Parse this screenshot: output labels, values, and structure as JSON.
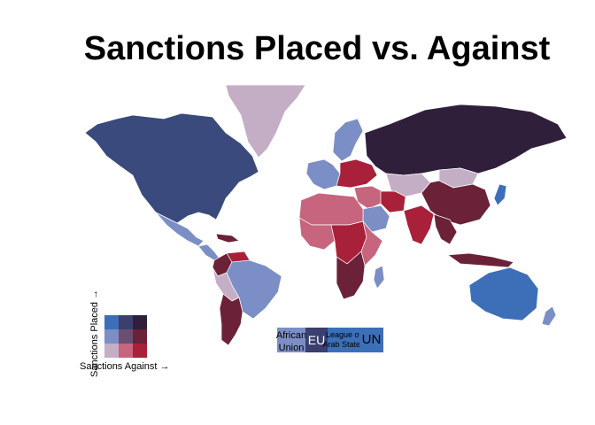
{
  "title": "Sanctions Placed vs. Against",
  "legend": {
    "y_label": "Sanctions Placed →",
    "x_label": "Sanctions Against →",
    "palette": [
      [
        "#3d6fb8",
        "#3a3f6e",
        "#2f1f3a"
      ],
      [
        "#7b8ec5",
        "#6b4f72",
        "#6b2137"
      ],
      [
        "#c4aec6",
        "#c6657d",
        "#a8203a"
      ]
    ]
  },
  "organizations": [
    {
      "name_line1": "African",
      "name_line2": "Union",
      "color": "#7b8ec5"
    },
    {
      "name": "EU",
      "color": "#3a3f6e"
    },
    {
      "name_line1": "League of",
      "name_line2": "Arab States",
      "color": "#3d6fb8"
    },
    {
      "name": "UN",
      "color": "#3d6fb8"
    }
  ],
  "colors": {
    "north_america": "#3a4a7c",
    "greenland": "#c4aec6",
    "central_america": "#7b8ec5",
    "mexico": "#7b8ec5",
    "caribbean": "#6b2137",
    "venezuela": "#a8203a",
    "colombia": "#6b2137",
    "brazil": "#7b8ec5",
    "southern_cone": "#6b2137",
    "peru": "#c4aec6",
    "russia": "#2f1f3a",
    "europe_west": "#7b8ec5",
    "europe_east": "#a8203a",
    "scandinavia": "#7b8ec5",
    "middle_east": "#c6657d",
    "iran": "#a8203a",
    "arabia": "#7b8ec5",
    "central_asia": "#c4aec6",
    "china": "#6b2137",
    "mongolia": "#c4aec6",
    "india": "#a8203a",
    "southeast_asia": "#6b2137",
    "japan": "#3d6fb8",
    "australia": "#3d6fb8",
    "new_zealand": "#7b8ec5",
    "north_africa": "#c6657d",
    "west_africa": "#c6657d",
    "central_africa": "#a8203a",
    "east_africa": "#c6657d",
    "southern_africa": "#6b2137",
    "madagascar": "#7b8ec5",
    "indonesia": "#6b2137"
  }
}
